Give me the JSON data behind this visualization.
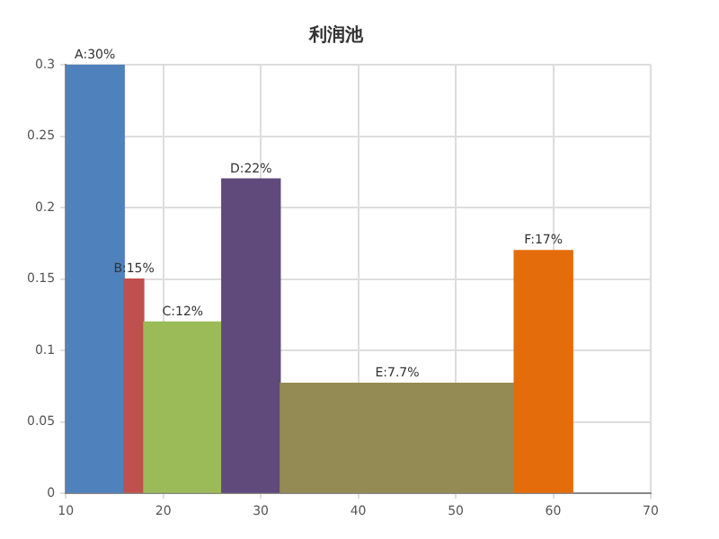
{
  "chart_data": {
    "type": "histogram",
    "title": "利润池",
    "bins": [
      10,
      16,
      18,
      26,
      32,
      56,
      62
    ],
    "values": [
      0.3,
      0.15,
      0.12,
      0.22,
      0.077,
      0.17
    ],
    "colors": [
      "#4f81bd",
      "#c0504d",
      "#9bbb59",
      "#604a7b",
      "#948a54",
      "#e46c0a"
    ],
    "value_labels": [
      "A:30%",
      "B:15%",
      "C:12%",
      "D:22%",
      "E:7.7%",
      "F:17%"
    ],
    "xlim": [
      10,
      70
    ],
    "xticks": [
      10,
      20,
      30,
      40,
      50,
      60,
      70
    ],
    "ylim": [
      0,
      0.3
    ],
    "yticks": [
      0,
      0.05,
      0.1,
      0.15,
      0.2,
      0.25,
      0.3
    ],
    "grid": true
  }
}
